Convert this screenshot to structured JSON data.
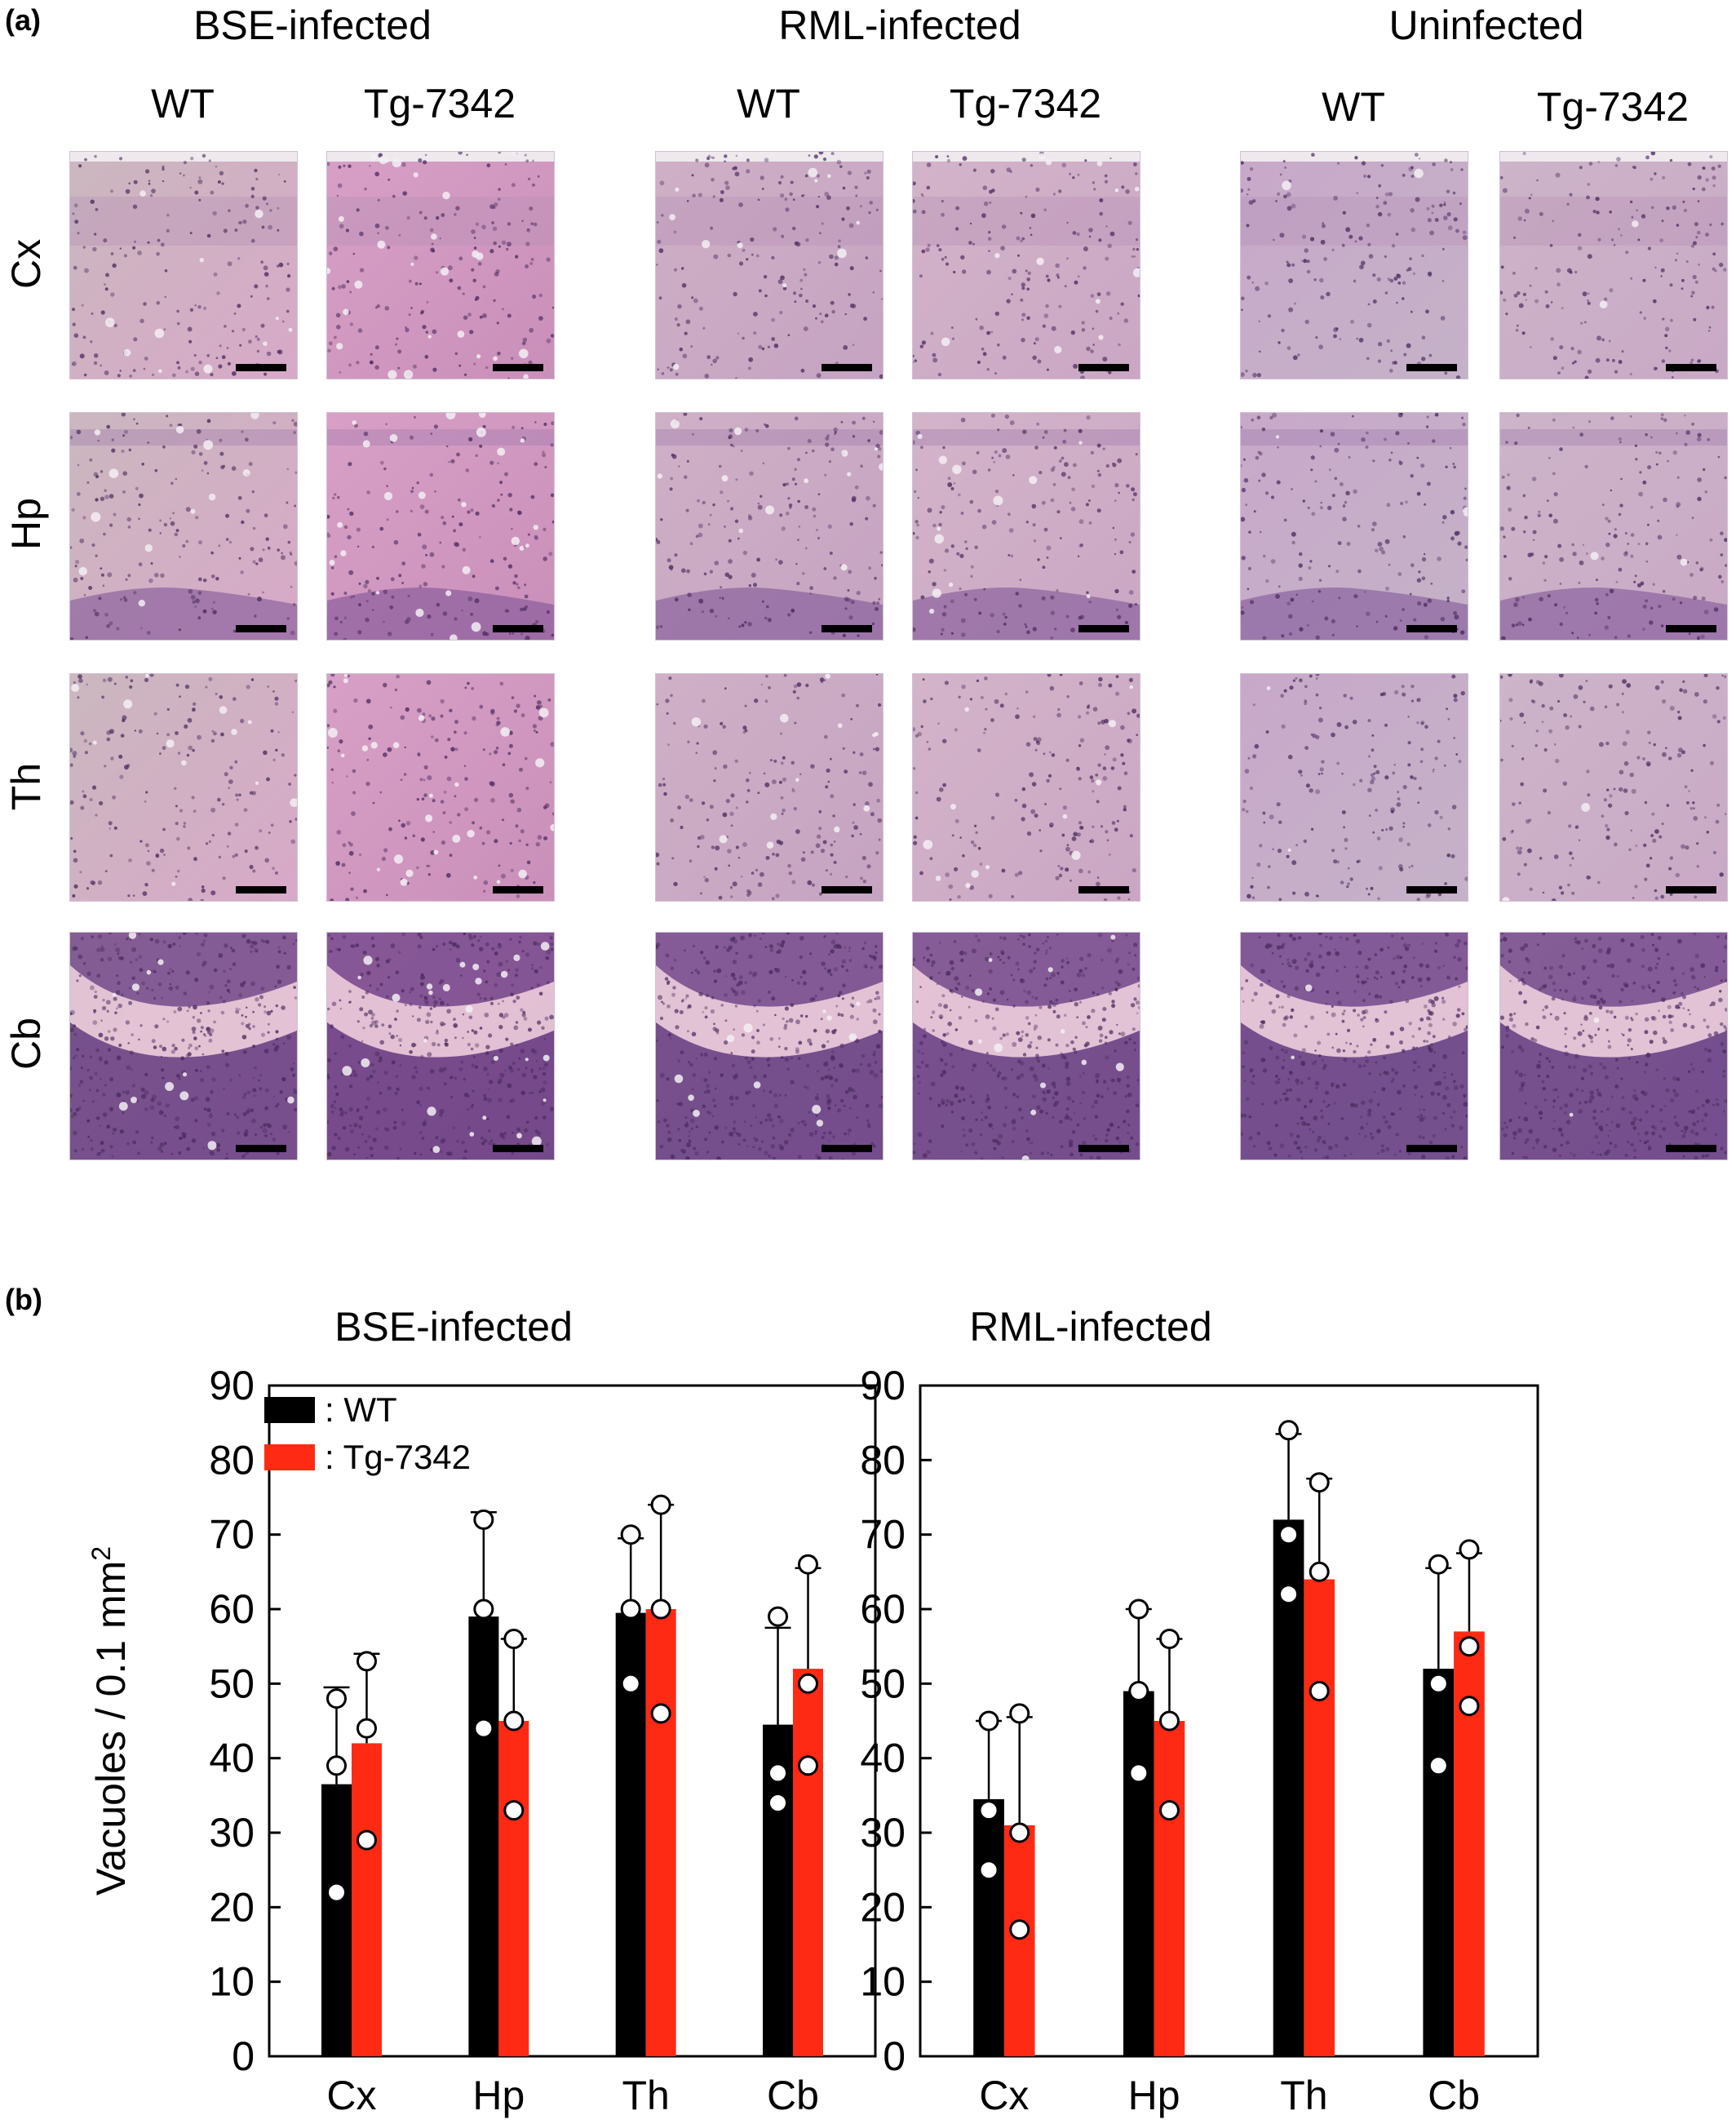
{
  "panel_a": {
    "letter": "(a)",
    "groups": [
      {
        "title": "BSE-infected",
        "columns": [
          "WT",
          "Tg-7342"
        ]
      },
      {
        "title": "RML-infected",
        "columns": [
          "WT",
          "Tg-7342"
        ]
      },
      {
        "title": "Uninfected",
        "columns": [
          "WT",
          "Tg-7342"
        ]
      }
    ],
    "rows": [
      "Cx",
      "Hp",
      "Th",
      "Cb"
    ]
  },
  "panel_b": {
    "letter": "(b)",
    "y_label": "Vacuoles / 0.1 mm",
    "y_label_sup": "2",
    "legend": [
      {
        "label": ": WT",
        "color": "#000000"
      },
      {
        "label": ": Tg-7342",
        "color": "#ff2a14"
      }
    ]
  },
  "chart_data": [
    {
      "type": "bar",
      "title": "BSE-infected",
      "categories": [
        "Cx",
        "Hp",
        "Th",
        "Cb"
      ],
      "ylabel": "Vacuoles / 0.1 mm2",
      "ylim": [
        0,
        90
      ],
      "yticks": [
        0,
        10,
        20,
        30,
        40,
        50,
        60,
        70,
        80,
        90
      ],
      "series": [
        {
          "name": "WT",
          "color": "#000000",
          "values": [
            36.5,
            59,
            59.5,
            44.5
          ],
          "error_upper": [
            49.5,
            73,
            69.5,
            57.5
          ],
          "points": [
            [
              48,
              39,
              22
            ],
            [
              72,
              60,
              44
            ],
            [
              70,
              60,
              50
            ],
            [
              59,
              38,
              34
            ]
          ]
        },
        {
          "name": "Tg-7342",
          "color": "#ff2a14",
          "values": [
            42,
            45,
            60,
            52
          ],
          "error_upper": [
            54,
            56,
            74,
            65.5
          ],
          "points": [
            [
              53,
              44,
              29
            ],
            [
              56,
              45,
              33
            ],
            [
              74,
              60,
              46
            ],
            [
              66,
              50,
              39
            ]
          ]
        }
      ]
    },
    {
      "type": "bar",
      "title": "RML-infected",
      "categories": [
        "Cx",
        "Hp",
        "Th",
        "Cb"
      ],
      "ylabel": "Vacuoles / 0.1 mm2",
      "ylim": [
        0,
        90
      ],
      "yticks": [
        0,
        10,
        20,
        30,
        40,
        50,
        60,
        70,
        80,
        90
      ],
      "series": [
        {
          "name": "WT",
          "color": "#000000",
          "values": [
            34.5,
            49,
            72,
            52
          ],
          "error_upper": [
            45,
            60,
            83.5,
            65.5
          ],
          "points": [
            [
              45,
              33,
              25
            ],
            [
              60,
              49,
              38
            ],
            [
              84,
              70,
              62
            ],
            [
              66,
              50,
              39
            ]
          ]
        },
        {
          "name": "Tg-7342",
          "color": "#ff2a14",
          "values": [
            31,
            45,
            64,
            57
          ],
          "error_upper": [
            45.5,
            56,
            77.5,
            67.5
          ],
          "points": [
            [
              46,
              30,
              17
            ],
            [
              56,
              45,
              33
            ],
            [
              77,
              65,
              49
            ],
            [
              68,
              55,
              47
            ]
          ]
        }
      ]
    }
  ]
}
